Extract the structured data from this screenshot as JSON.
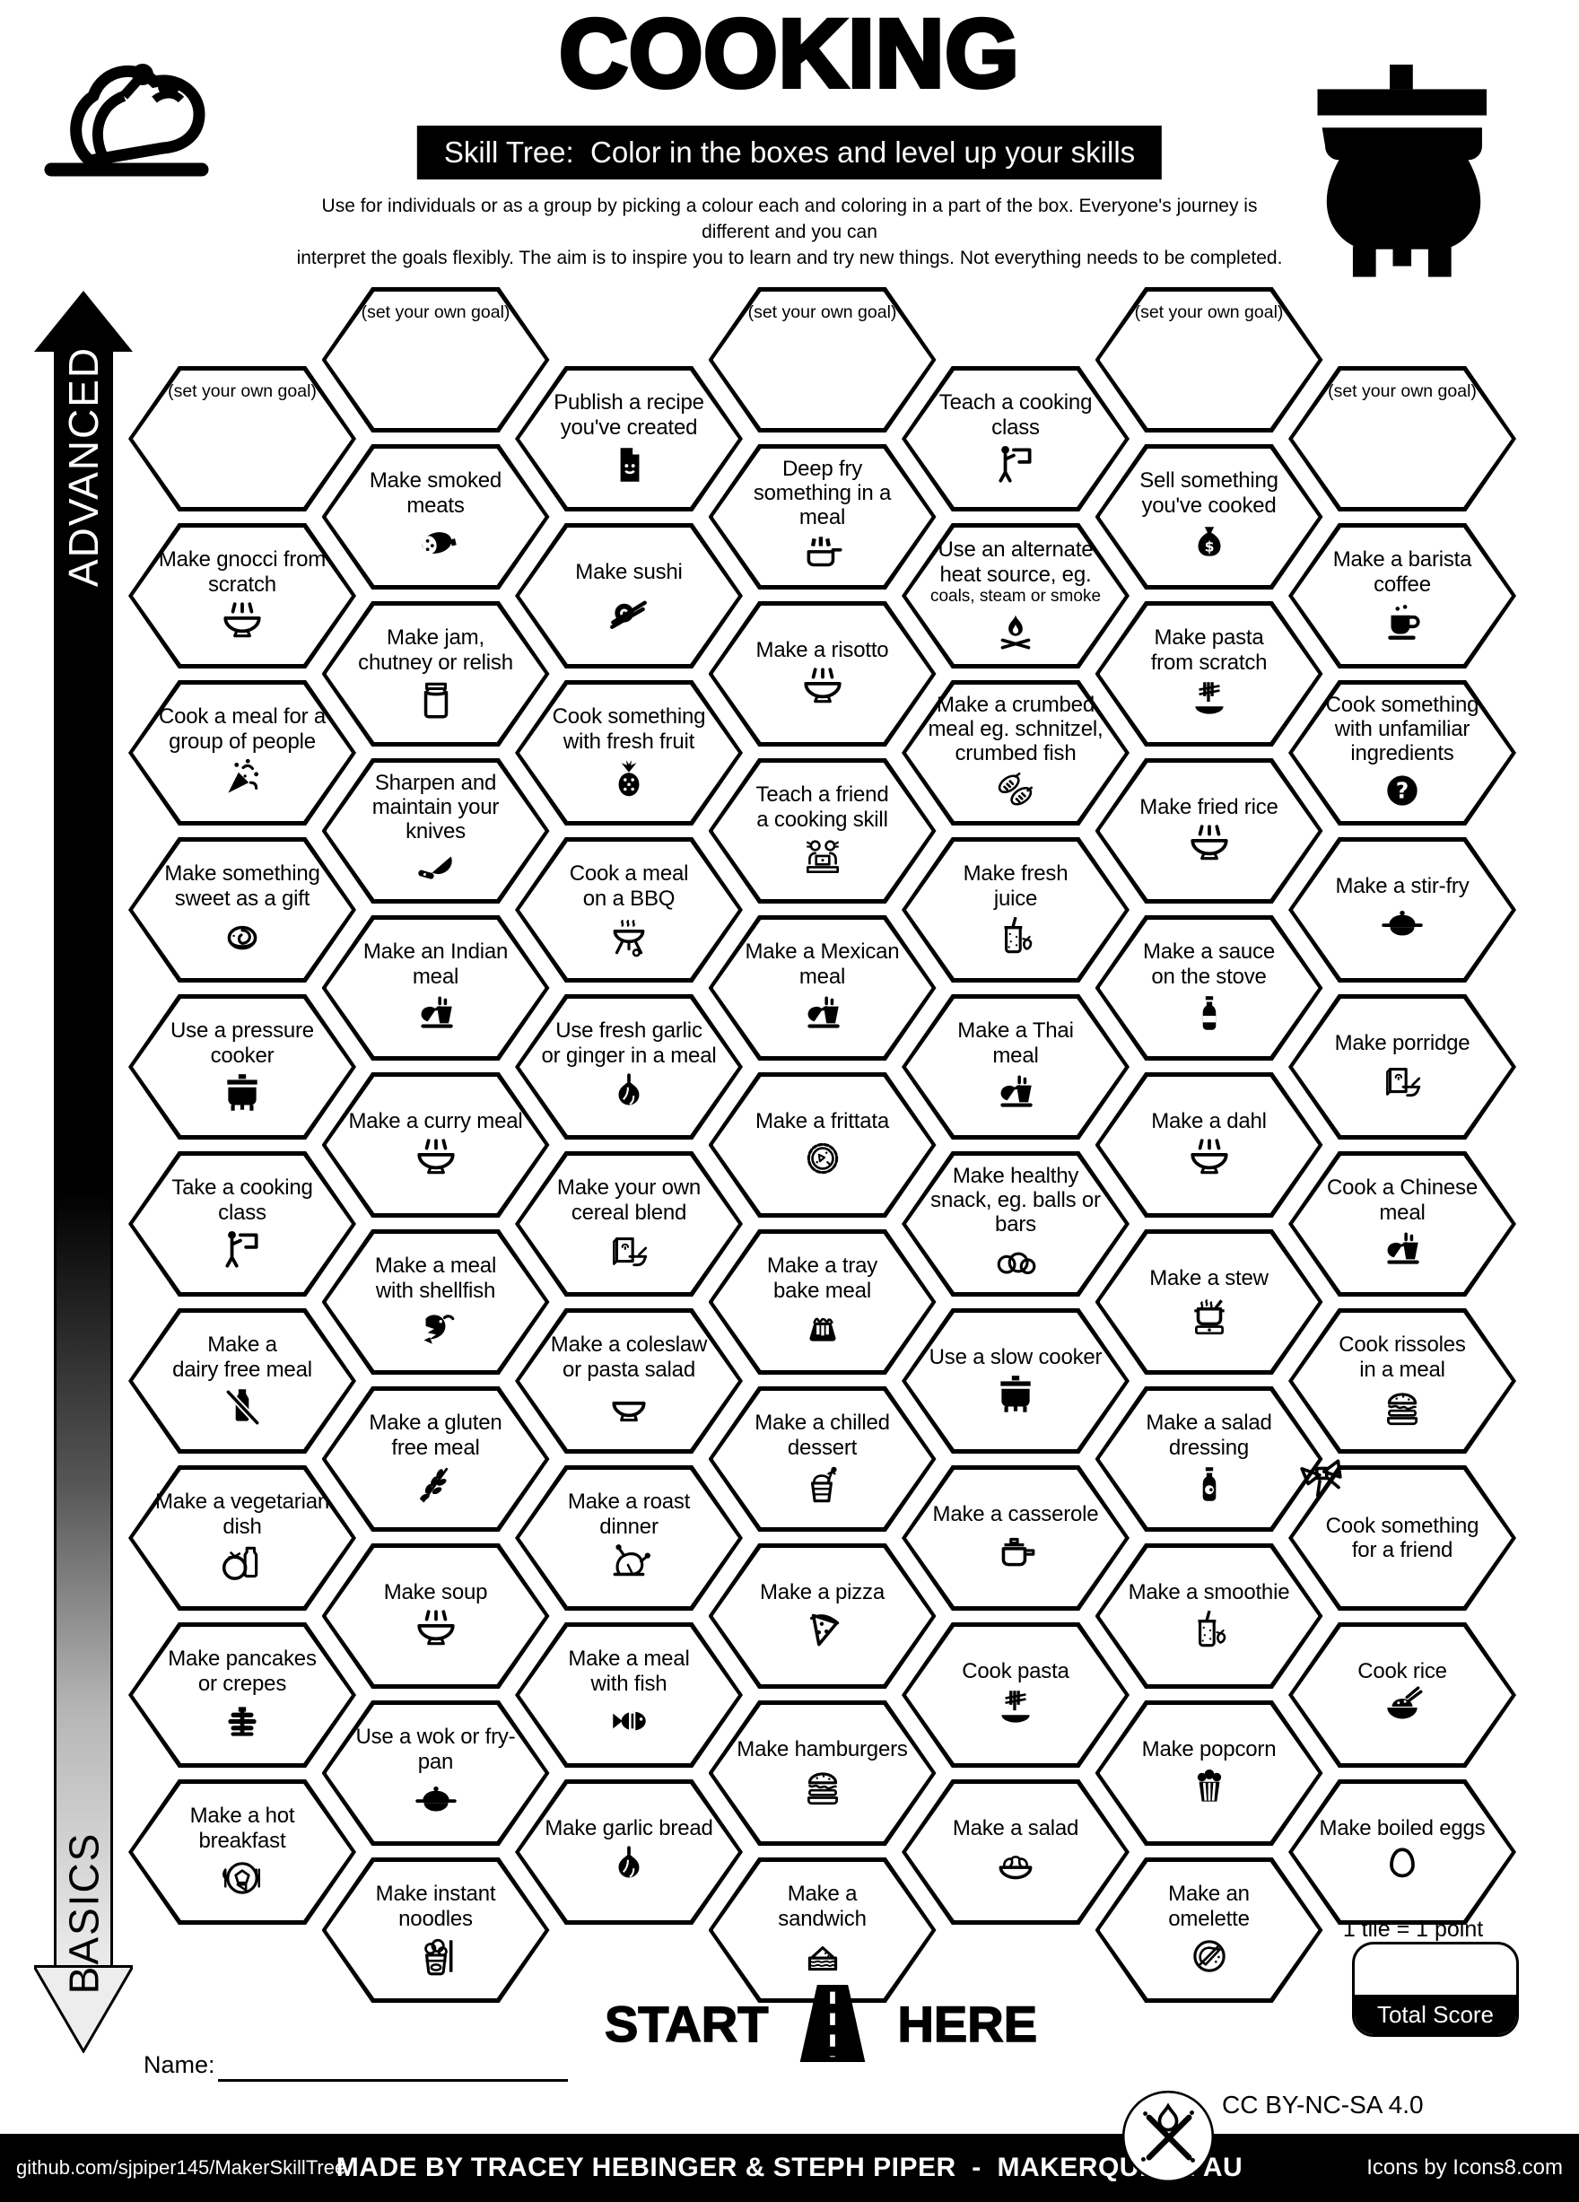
{
  "header": {
    "title": "COOKING",
    "subtitle": "Skill Tree:  Color in the boxes and level up your skills",
    "description": "Use for individuals or as a group by picking a colour each and coloring in a part of the box.  Everyone's journey is different and you can\ninterpret the goals flexibly.  The aim is to inspire you to learn and try new things. Not everything needs to be completed.",
    "left_icon": "roast-turkey",
    "right_icon": "cauldron-pot"
  },
  "axis": {
    "top_label": "ADVANCED",
    "bottom_label": "BASICS"
  },
  "grid": {
    "goal_placeholder": "(set your own goal)",
    "columns": [
      {
        "tiles": [
          {
            "goal": true,
            "label": "(set your own goal)"
          },
          {
            "label": "Make gnocci from\nscratch",
            "icon": "steaming-bowl"
          },
          {
            "label": "Cook a meal for a\ngroup of people",
            "icon": "party-popper"
          },
          {
            "label": "Make something\nsweet as a gift",
            "icon": "cinnamon-roll"
          },
          {
            "label": "Use a pressure\ncooker",
            "icon": "pressure-cooker"
          },
          {
            "label": "Take a cooking\nclass",
            "icon": "teacher-board"
          },
          {
            "label": "Make a\ndairy free meal",
            "icon": "no-dairy"
          },
          {
            "label": "Make a vegetarian\ndish",
            "icon": "tomato-and-milk"
          },
          {
            "label": "Make pancakes\nor crepes",
            "icon": "pancake-stack"
          },
          {
            "label": "Make a hot\nbreakfast",
            "icon": "breakfast-plate"
          }
        ]
      },
      {
        "tiles": [
          {
            "goal": true,
            "label": "(set your own goal)"
          },
          {
            "label": "Make smoked\nmeats",
            "icon": "smoked-meat"
          },
          {
            "label": "Make jam,\nchutney or relish",
            "icon": "preserve-jar"
          },
          {
            "label": "Sharpen and\nmaintain your\nknives",
            "icon": "chef-knife"
          },
          {
            "label": "Make an Indian\nmeal",
            "icon": "meal-cup"
          },
          {
            "label": "Make a curry meal",
            "icon": "steaming-bowl"
          },
          {
            "label": "Make a meal\nwith shellfish",
            "icon": "shrimp"
          },
          {
            "label": "Make a gluten\nfree meal",
            "icon": "no-gluten"
          },
          {
            "label": "Make soup",
            "icon": "steaming-bowl"
          },
          {
            "label": "Use a wok or fry-pan",
            "icon": "wok-lid"
          },
          {
            "label": "Make instant\nnoodles",
            "icon": "noodle-cup"
          }
        ]
      },
      {
        "tiles": [
          {
            "label": "Publish a recipe\nyou've created",
            "icon": "recipe-document"
          },
          {
            "label": "Make sushi",
            "icon": "sushi-roll"
          },
          {
            "label": "Cook something\nwith fresh fruit",
            "icon": "pineapple"
          },
          {
            "label": "Cook a meal\non a BBQ",
            "icon": "bbq-grill"
          },
          {
            "label": "Use fresh garlic\nor ginger in a meal",
            "icon": "garlic"
          },
          {
            "label": "Make your own\ncereal blend",
            "icon": "cereal-and-bowl"
          },
          {
            "label": "Make a coleslaw\nor pasta salad",
            "icon": "mixing-bowl"
          },
          {
            "label": "Make a roast\ndinner",
            "icon": "roast-chicken"
          },
          {
            "label": "Make a meal\nwith fish",
            "icon": "fish"
          },
          {
            "label": "Make garlic bread",
            "icon": "garlic"
          }
        ]
      },
      {
        "tiles": [
          {
            "goal": true,
            "label": "(set your own goal)"
          },
          {
            "label": "Deep fry\nsomething in a meal",
            "icon": "deep-fryer"
          },
          {
            "label": "Make a risotto",
            "icon": "steaming-bowl"
          },
          {
            "label": "Teach a friend\na cooking skill",
            "icon": "cooking-lesson"
          },
          {
            "label": "Make a Mexican\nmeal",
            "icon": "meal-cup"
          },
          {
            "label": "Make a frittata",
            "icon": "frittata"
          },
          {
            "label": "Make a tray\nbake meal",
            "icon": "tray-bake"
          },
          {
            "label": "Make a chilled\ndessert",
            "icon": "dessert-cup"
          },
          {
            "label": "Make a pizza",
            "icon": "pizza-slice"
          },
          {
            "label": "Make hamburgers",
            "icon": "hamburger"
          },
          {
            "label": "Make a\nsandwich",
            "icon": "sandwich"
          }
        ]
      },
      {
        "tiles": [
          {
            "label": "Teach a cooking\nclass",
            "icon": "teacher-board"
          },
          {
            "label": "Use an alternate\nheat source, eg.",
            "sub": "coals, steam or smoke",
            "icon": "campfire"
          },
          {
            "label": "Make a crumbed\nmeal eg. schnitzel,\ncrumbed fish",
            "icon": "schnitzel"
          },
          {
            "label": "Make fresh\njuice",
            "icon": "juice-jar"
          },
          {
            "label": "Make a Thai\nmeal",
            "icon": "meal-cup"
          },
          {
            "label": "Make healthy\nsnack, eg. balls or\nbars",
            "icon": "protein-balls"
          },
          {
            "label": "Use a slow cooker",
            "icon": "slow-cooker"
          },
          {
            "label": "Make a casserole",
            "icon": "casserole-pot"
          },
          {
            "label": "Cook pasta",
            "icon": "pasta-fork"
          },
          {
            "label": "Make a salad",
            "icon": "salad-bowl"
          }
        ]
      },
      {
        "tiles": [
          {
            "goal": true,
            "label": "(set your own goal)"
          },
          {
            "label": "Sell something\nyou've cooked",
            "icon": "money-bag"
          },
          {
            "label": "Make pasta\nfrom scratch",
            "icon": "pasta-fork"
          },
          {
            "label": "Make fried rice",
            "icon": "steaming-bowl"
          },
          {
            "label": "Make a sauce\non the stove",
            "icon": "sauce-bottle"
          },
          {
            "label": "Make a dahl",
            "icon": "steaming-bowl"
          },
          {
            "label": "Make a stew",
            "icon": "stew-pot"
          },
          {
            "label": "Make a salad\ndressing",
            "icon": "salad-dressing-bottle"
          },
          {
            "label": "Make a smoothie",
            "icon": "smoothie-jar"
          },
          {
            "label": "Make popcorn",
            "icon": "popcorn"
          },
          {
            "label": "Make an\nomelette",
            "icon": "omelette-pan"
          }
        ]
      },
      {
        "tiles": [
          {
            "goal": true,
            "label": "(set your own goal)"
          },
          {
            "label": "Make a barista\ncoffee",
            "icon": "coffee-cup"
          },
          {
            "label": "Cook something\nwith unfamiliar\ningredients",
            "icon": "question-mark"
          },
          {
            "label": "Make a stir-fry",
            "icon": "wok-lid"
          },
          {
            "label": "Make porridge",
            "icon": "cereal-and-bowl"
          },
          {
            "label": "Cook a Chinese\nmeal",
            "icon": "meal-cup"
          },
          {
            "label": "Cook rissoles\nin a meal",
            "icon": "hamburger"
          },
          {
            "label": "Cook something\nfor a friend",
            "icon": "gift-bow",
            "icon_position": "corner"
          },
          {
            "label": "Cook rice",
            "icon": "rice-bowl"
          },
          {
            "label": "Make boiled eggs",
            "icon": "boiled-egg"
          }
        ]
      }
    ]
  },
  "start_marker": {
    "left_label": "START",
    "right_label": "HERE",
    "icon": "road"
  },
  "score": {
    "note": "1 tile = 1 point",
    "box_label": "Total Score"
  },
  "name_field": {
    "label": "Name:"
  },
  "license": {
    "text": "CC BY-NC-SA 4.0",
    "badge_icon": "makerqueen-logo"
  },
  "footer": {
    "left": "github.com/sjpiper145/MakerSkillTree",
    "center": "MADE BY TRACEY HEBINGER & STEPH PIPER  -  MAKERQUEEN AU",
    "right": "Icons by Icons8.com"
  },
  "colors": {
    "ink": "#000000",
    "paper": "#ffffff"
  }
}
